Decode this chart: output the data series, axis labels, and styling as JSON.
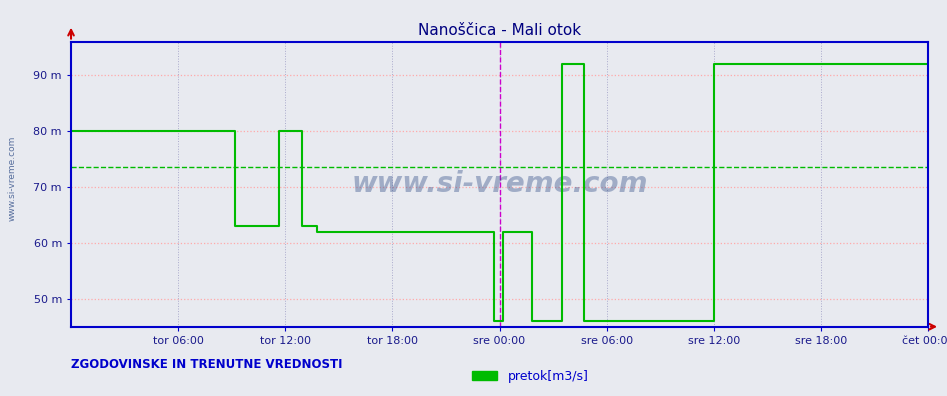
{
  "title": "Nanoščica - Mali otok",
  "title_color": "#000080",
  "yticks": [
    50,
    60,
    70,
    80,
    90
  ],
  "ytick_labels": [
    "50 m",
    "60 m",
    "70 m",
    "80 m",
    "90 m"
  ],
  "ylim": [
    45,
    96
  ],
  "xlim": [
    0,
    576
  ],
  "xtick_positions": [
    72,
    144,
    216,
    288,
    360,
    432,
    504,
    576
  ],
  "xtick_labels": [
    "tor 06:00",
    "tor 12:00",
    "tor 18:00",
    "sre 00:00",
    "sre 06:00",
    "sre 12:00",
    "sre 18:00",
    "čet 00:00"
  ],
  "background_color": "#e8eaf0",
  "plot_bg_color": "#e8eaf0",
  "grid_h_color": "#ffaaaa",
  "grid_v_color": "#aaaacc",
  "line_color": "#00bb00",
  "avg_line_color": "#00bb00",
  "avg_line_value": 73.5,
  "vline_color": "#cc00cc",
  "vline_positions": [
    288
  ],
  "legend_label": "pretok[m3/s]",
  "bottom_text": "ZGODOVINSKE IN TRENUTNE VREDNOSTI",
  "bottom_text_color": "#0000cc",
  "watermark": "www.si-vreme.com",
  "flow_x": [
    0,
    110,
    110,
    140,
    140,
    155,
    155,
    165,
    165,
    284,
    284,
    290,
    290,
    310,
    310,
    330,
    330,
    345,
    345,
    432,
    432,
    576
  ],
  "flow_y": [
    80,
    80,
    63,
    63,
    80,
    80,
    63,
    63,
    62,
    62,
    46,
    46,
    62,
    62,
    46,
    46,
    92,
    92,
    46,
    46,
    92,
    92
  ]
}
